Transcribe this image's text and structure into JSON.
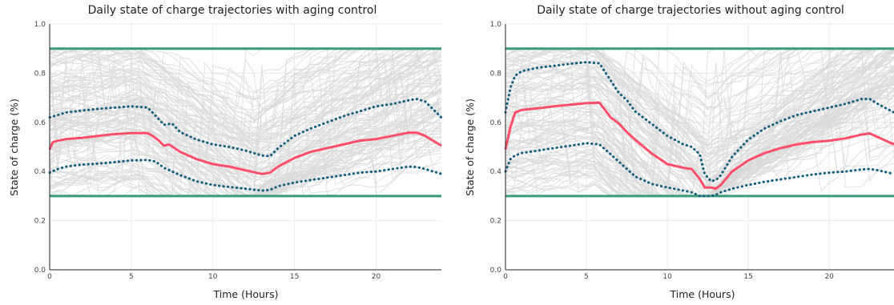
{
  "chart_data": [
    {
      "type": "line",
      "title": "Daily state of charge trajectories with aging control",
      "xlabel": "Time (Hours)",
      "ylabel": "State of charge (%)",
      "xlim": [
        0,
        24
      ],
      "ylim": [
        0,
        1
      ],
      "xticks": [
        0,
        5,
        10,
        15,
        20
      ],
      "yticks": [
        0.0,
        0.2,
        0.4,
        0.6,
        0.8,
        1.0
      ],
      "grid": true,
      "colors": {
        "limits": "#3a9b7a",
        "mean": "#ff4d6a",
        "bounds": "#13607e",
        "trajectories": "#d8d8d8"
      },
      "limits": [
        0.3,
        0.9
      ],
      "series": [
        {
          "x": [
            0,
            0.2,
            0.5,
            1,
            2,
            3,
            4,
            5,
            6,
            6.3,
            6.7,
            7,
            7.3,
            8,
            9,
            10,
            11,
            12,
            13,
            13.5,
            14,
            15,
            16,
            17,
            18,
            19,
            20,
            21,
            22,
            22.5,
            23,
            24
          ],
          "values": [
            0.49,
            0.52,
            0.525,
            0.532,
            0.537,
            0.545,
            0.552,
            0.556,
            0.556,
            0.545,
            0.525,
            0.505,
            0.51,
            0.48,
            0.45,
            0.43,
            0.42,
            0.405,
            0.39,
            0.395,
            0.42,
            0.455,
            0.48,
            0.495,
            0.51,
            0.525,
            0.532,
            0.545,
            0.558,
            0.558,
            0.545,
            0.505
          ]
        },
        {
          "x": [
            0,
            1,
            2,
            3,
            4,
            5,
            6,
            6.3,
            7,
            7.5,
            8,
            9,
            10,
            11,
            12,
            13,
            13.5,
            14,
            15,
            16,
            17,
            18,
            19,
            20,
            21,
            22,
            22.5,
            23,
            24
          ],
          "values": [
            0.62,
            0.64,
            0.648,
            0.655,
            0.66,
            0.665,
            0.66,
            0.64,
            0.59,
            0.595,
            0.56,
            0.53,
            0.51,
            0.5,
            0.485,
            0.465,
            0.462,
            0.495,
            0.545,
            0.575,
            0.6,
            0.625,
            0.645,
            0.665,
            0.675,
            0.69,
            0.695,
            0.685,
            0.62
          ]
        },
        {
          "x": [
            0,
            0.5,
            1,
            2,
            3,
            4,
            5,
            6,
            6.5,
            7,
            8,
            9,
            10,
            11,
            12,
            13,
            13.5,
            14,
            15,
            16,
            17,
            18,
            19,
            20,
            21,
            22,
            22.5,
            23,
            24
          ],
          "values": [
            0.395,
            0.41,
            0.42,
            0.428,
            0.432,
            0.438,
            0.445,
            0.447,
            0.44,
            0.415,
            0.385,
            0.36,
            0.345,
            0.337,
            0.33,
            0.322,
            0.325,
            0.34,
            0.355,
            0.365,
            0.375,
            0.385,
            0.395,
            0.4,
            0.41,
            0.42,
            0.418,
            0.41,
            0.39
          ]
        }
      ]
    },
    {
      "type": "line",
      "title": "Daily state of charge trajectories without aging control",
      "xlabel": "Time (Hours)",
      "ylabel": "State of charge (%)",
      "xlim": [
        0,
        24
      ],
      "ylim": [
        0,
        1
      ],
      "xticks": [
        0,
        5,
        10,
        15,
        20
      ],
      "yticks": [
        0.0,
        0.2,
        0.4,
        0.6,
        0.8,
        1.0
      ],
      "grid": true,
      "colors": {
        "limits": "#3a9b7a",
        "mean": "#ff4d6a",
        "bounds": "#13607e",
        "trajectories": "#d8d8d8"
      },
      "limits": [
        0.3,
        0.9
      ],
      "series": [
        {
          "x": [
            0,
            0.3,
            0.6,
            1,
            2,
            3,
            4,
            5,
            5.8,
            6.5,
            7,
            7.5,
            8,
            9,
            10,
            11,
            11.5,
            12,
            12.3,
            12.7,
            13,
            13.3,
            14,
            15,
            16,
            17,
            18,
            19,
            20,
            21,
            22,
            22.5,
            23,
            24
          ],
          "values": [
            0.49,
            0.58,
            0.64,
            0.65,
            0.657,
            0.665,
            0.672,
            0.678,
            0.68,
            0.62,
            0.595,
            0.56,
            0.53,
            0.475,
            0.43,
            0.415,
            0.41,
            0.37,
            0.335,
            0.335,
            0.33,
            0.345,
            0.4,
            0.445,
            0.475,
            0.495,
            0.51,
            0.52,
            0.525,
            0.535,
            0.55,
            0.555,
            0.54,
            0.51
          ]
        },
        {
          "x": [
            0,
            0.3,
            0.6,
            1,
            2,
            3,
            4,
            5,
            5.8,
            6.5,
            7,
            7.5,
            8,
            9,
            10,
            11,
            11.5,
            12,
            12.3,
            12.7,
            13,
            13.3,
            14,
            15,
            16,
            17,
            18,
            19,
            20,
            21,
            22,
            22.5,
            23,
            24
          ],
          "values": [
            0.64,
            0.74,
            0.79,
            0.808,
            0.822,
            0.83,
            0.838,
            0.845,
            0.84,
            0.77,
            0.72,
            0.69,
            0.645,
            0.595,
            0.545,
            0.51,
            0.5,
            0.47,
            0.39,
            0.36,
            0.365,
            0.385,
            0.46,
            0.53,
            0.575,
            0.605,
            0.63,
            0.645,
            0.66,
            0.675,
            0.695,
            0.695,
            0.675,
            0.64
          ]
        },
        {
          "x": [
            0,
            0.3,
            0.6,
            1,
            2,
            3,
            4,
            5,
            5.8,
            6.5,
            7,
            7.5,
            8,
            9,
            10,
            11,
            11.5,
            12,
            12.3,
            12.7,
            13,
            13.3,
            14,
            15,
            16,
            17,
            18,
            19,
            20,
            21,
            22,
            22.5,
            23,
            24
          ],
          "values": [
            0.4,
            0.45,
            0.465,
            0.475,
            0.485,
            0.495,
            0.505,
            0.515,
            0.51,
            0.47,
            0.44,
            0.41,
            0.38,
            0.35,
            0.335,
            0.322,
            0.315,
            0.3,
            0.3,
            0.3,
            0.305,
            0.315,
            0.33,
            0.345,
            0.358,
            0.368,
            0.378,
            0.388,
            0.395,
            0.4,
            0.408,
            0.41,
            0.405,
            0.39
          ]
        }
      ]
    }
  ]
}
